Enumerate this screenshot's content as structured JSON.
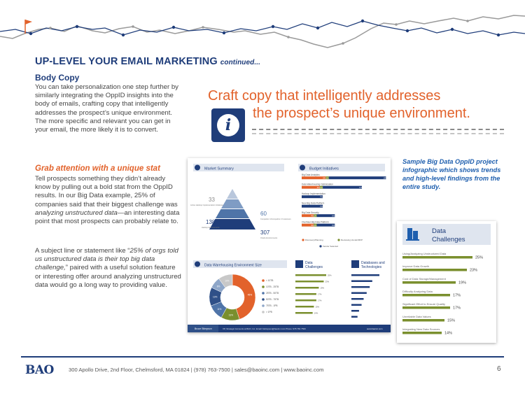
{
  "colors": {
    "navy": "#1f3d7a",
    "orange": "#e2622b",
    "olive": "#7a8f2e",
    "blue": "#1f5fae"
  },
  "heading": {
    "title": "UP-LEVEL YOUR EMAIL MARKETING",
    "suffix": "continued..."
  },
  "body_copy": {
    "title": "Body Copy",
    "paragraph": "You can take personalization one step further by similarly integrating the OppID insights into the body of emails, crafting copy that intelligently addresses the prospect’s unique environment. The more specific and relevant you can get in your email, the more likely it is to convert."
  },
  "pull_quote": {
    "line1": "Craft copy that intelligently addresses",
    "line2": "the prospect’s unique environment.",
    "icon": "info-icon"
  },
  "stat_section": {
    "title": "Grab attention with a unique stat",
    "p1_a": "Tell prospects something they didn’t already know by pulling out a bold stat from the OppID results. In our Big Data example, 25% of companies said that their biggest challenge was ",
    "p1_em": "analyzing unstructured data",
    "p1_b": "—an interesting data point that most prospects can probably relate to.",
    "p2_a": "A subject line or statement like “",
    "p2_em": "25% of orgs told us unstructured data is their top big data challenge,",
    "p2_b": "” paired with a useful solution feature or interesting offer around analyzing unstructured data would go a long way to providing value."
  },
  "infographic": {
    "market": {
      "title": "Market Summary",
      "n1": "33",
      "l1": "Active Hadoop Implementation Initiatives",
      "n2": "138",
      "l2": "Hadoop Environments",
      "n3": "60",
      "l3": "Competitor 1/Competitor 2 Customers",
      "n4": "307",
      "l4": "Oracle Environments"
    },
    "budget": {
      "title": "Budget Initiatives",
      "items": [
        {
          "label": "Big Data Analytics",
          "a": "8%",
          "b": "1%",
          "c": "19%",
          "av": 8,
          "bv": 1,
          "cv": 19
        },
        {
          "label": "Data Warehousing Optimization",
          "a": "6%",
          "b": "1%",
          "c": "13%",
          "av": 6,
          "bv": 1,
          "cv": 13
        },
        {
          "label": "Hadoop Implementation",
          "a": "",
          "b": "",
          "c": "7%",
          "av": 0,
          "bv": 0,
          "cv": 7
        },
        {
          "label": "New Big Data Platform",
          "a": "",
          "b": "",
          "c": "7%",
          "av": 0,
          "bv": 0,
          "cv": 7
        },
        {
          "label": "Big Data Security",
          "a": "4%",
          "b": "1%",
          "c": "6%",
          "av": 4,
          "bv": 1,
          "cv": 6
        },
        {
          "label": "Overhaul Big Data Platform",
          "a": "4%",
          "b": "1%",
          "c": "6%",
          "av": 4,
          "bv": 1,
          "cv": 6
        }
      ],
      "legend": [
        "Discovery/Planning",
        "Reviewing Vendor/RFP",
        "Vendor Selected"
      ]
    },
    "dw": {
      "title": "Data Warehousing Environment Size",
      "slices": [
        {
          "label": "< 10TB",
          "value": 45,
          "pct": "45%",
          "color": "#e2622b"
        },
        {
          "label": "10TB - 25TB",
          "value": 13,
          "pct": "13%",
          "color": "#7a8f2e"
        },
        {
          "label": "25TB - 50TB",
          "value": 11,
          "pct": "11%",
          "color": "#4f74a8"
        },
        {
          "label": "50TB - 75TB",
          "value": 13,
          "pct": "13%",
          "color": "#2f5088"
        },
        {
          "label": "75TB - 1PB",
          "value": 8,
          "pct": "8%",
          "color": "#8ea6c8"
        },
        {
          "label": "> 1PB",
          "value": 10,
          "pct": "10%",
          "color": "#c8c8c8"
        }
      ]
    },
    "challenges_small": {
      "title_1": "Data",
      "title_2": "Challenges",
      "values": [
        25,
        23,
        19,
        17,
        17,
        15,
        14
      ],
      "labels": [
        "25%",
        "23%",
        "19%",
        "17%",
        "17%",
        "15%",
        "14%"
      ]
    },
    "databases": {
      "title_1": "Databases and",
      "title_2": "Technologies",
      "values": [
        55,
        41,
        36,
        30,
        24,
        20,
        15,
        12
      ],
      "labels": [
        "",
        "",
        "",
        "",
        "",
        "",
        "",
        ""
      ]
    },
    "footer": {
      "name": "Bruce Stimpson",
      "contact": "VP, Strategic Accounts at BAO, Inc. Email: bstimpson@baoinc.com Phone: 978 763 7500",
      "site": "www.baoinc.com"
    }
  },
  "caption": "Sample Big Data OppID project infographic which shows trends and high-level findings from the entire study.",
  "card": {
    "title_1": "Data",
    "title_2": "Challenges",
    "icon": "building-icon",
    "items": [
      {
        "label": "Using/Analyzing Unstructured Data",
        "value": 25,
        "pct": "25%"
      },
      {
        "label": "Improve Data Growth",
        "value": 23,
        "pct": "23%"
      },
      {
        "label": "Cost of Data Storage/Management",
        "value": 19,
        "pct": "19%"
      },
      {
        "label": "Difficulty Analyzing Data",
        "value": 17,
        "pct": "17%"
      },
      {
        "label": "Significant Effort to Ensure Quality",
        "value": 17,
        "pct": "17%"
      },
      {
        "label": "Unreliable Data Values",
        "value": 15,
        "pct": "15%"
      },
      {
        "label": "Integrating New Data Sources",
        "value": 14,
        "pct": "14%"
      }
    ]
  },
  "footer": {
    "logo": "BAO",
    "address": "300 Apollo Drive, 2nd Floor, Chelmsford, MA 01824  |  (978) 763-7500  |  sales@baoinc.com  |  www.baoinc.com",
    "page": "6"
  }
}
